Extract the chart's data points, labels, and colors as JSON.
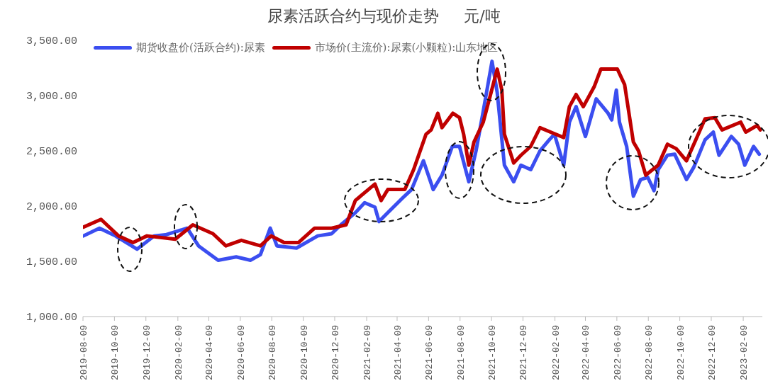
{
  "chart_data": {
    "type": "line",
    "title": "尿素活跃合约与现价走势     元/吨",
    "legend": "top",
    "grid": false,
    "marker": "none",
    "line_style": "solid",
    "xlim": [
      "2019-08-09",
      "2023-03-18"
    ],
    "xticks": [
      "2019-08-09",
      "2019-10-09",
      "2019-12-09",
      "2020-02-09",
      "2020-04-09",
      "2020-06-09",
      "2020-08-09",
      "2020-10-09",
      "2020-12-09",
      "2021-02-09",
      "2021-04-09",
      "2021-06-09",
      "2021-08-09",
      "2021-10-09",
      "2021-12-09",
      "2022-02-09",
      "2022-04-09",
      "2022-06-09",
      "2022-08-09",
      "2022-10-09",
      "2022-12-09",
      "2023-02-09"
    ],
    "ylim": [
      1000,
      3500
    ],
    "yticks": [
      {
        "value": 1000,
        "label": "1,000.00"
      },
      {
        "value": 1500,
        "label": "1,500.00"
      },
      {
        "value": 2000,
        "label": "2,000.00"
      },
      {
        "value": 2500,
        "label": "2,500.00"
      },
      {
        "value": 3000,
        "label": "3,000.00"
      },
      {
        "value": 3500,
        "label": "3,500.00"
      }
    ],
    "series": [
      {
        "name": "期货收盘价(活跃合约):尿素",
        "color": "#3b4ef0",
        "x": [
          "2019-08-10",
          "2019-09-10",
          "2019-10-11",
          "2019-11-22",
          "2019-12-25",
          "2020-01-16",
          "2020-02-27",
          "2020-03-20",
          "2020-04-27",
          "2020-06-01",
          "2020-06-29",
          "2020-07-18",
          "2020-08-06",
          "2020-08-19",
          "2020-09-26",
          "2020-11-06",
          "2020-12-03",
          "2020-12-21",
          "2021-01-18",
          "2021-02-05",
          "2021-02-25",
          "2021-03-05",
          "2021-03-22",
          "2021-04-19",
          "2021-05-07",
          "2021-05-30",
          "2021-06-18",
          "2021-07-05",
          "2021-07-25",
          "2021-08-08",
          "2021-08-26",
          "2021-09-09",
          "2021-09-23",
          "2021-10-10",
          "2021-10-20",
          "2021-11-03",
          "2021-11-21",
          "2021-12-05",
          "2021-12-24",
          "2022-01-11",
          "2022-01-29",
          "2022-02-08",
          "2022-02-26",
          "2022-03-09",
          "2022-03-22",
          "2022-04-09",
          "2022-04-30",
          "2022-05-23",
          "2022-05-30",
          "2022-06-08",
          "2022-06-14",
          "2022-06-28",
          "2022-07-11",
          "2022-07-25",
          "2022-08-08",
          "2022-08-20",
          "2022-08-28",
          "2022-09-15",
          "2022-09-29",
          "2022-10-22",
          "2022-11-05",
          "2022-11-27",
          "2022-12-13",
          "2022-12-24",
          "2023-01-17",
          "2023-01-31",
          "2023-02-12",
          "2023-03-01",
          "2023-03-12"
        ],
        "values": [
          1730,
          1800,
          1730,
          1610,
          1730,
          1740,
          1800,
          1640,
          1510,
          1540,
          1510,
          1560,
          1800,
          1640,
          1620,
          1730,
          1750,
          1830,
          1940,
          2030,
          1990,
          1860,
          1940,
          2070,
          2150,
          2410,
          2150,
          2280,
          2540,
          2540,
          2220,
          2500,
          2860,
          3310,
          3030,
          2370,
          2220,
          2370,
          2330,
          2500,
          2600,
          2650,
          2370,
          2760,
          2900,
          2630,
          2970,
          2840,
          2780,
          3050,
          2760,
          2540,
          2090,
          2240,
          2260,
          2140,
          2330,
          2460,
          2470,
          2240,
          2350,
          2600,
          2670,
          2460,
          2630,
          2560,
          2370,
          2540,
          2470
        ]
      },
      {
        "name": "市场价(主流价):尿素(小颗粒):山东地区",
        "color": "#c00000",
        "x": [
          "2019-08-10",
          "2019-09-13",
          "2019-10-17",
          "2019-11-14",
          "2019-12-11",
          "2020-02-04",
          "2020-03-09",
          "2020-04-17",
          "2020-05-12",
          "2020-06-11",
          "2020-07-18",
          "2020-08-08",
          "2020-09-02",
          "2020-09-30",
          "2020-10-31",
          "2020-12-03",
          "2020-12-31",
          "2021-01-18",
          "2021-02-25",
          "2021-03-09",
          "2021-03-22",
          "2021-04-24",
          "2021-05-11",
          "2021-06-04",
          "2021-06-14",
          "2021-06-27",
          "2021-07-05",
          "2021-07-26",
          "2021-08-08",
          "2021-08-16",
          "2021-08-26",
          "2021-09-05",
          "2021-09-23",
          "2021-10-06",
          "2021-10-20",
          "2021-10-29",
          "2021-11-03",
          "2021-11-21",
          "2021-12-05",
          "2021-12-24",
          "2022-01-11",
          "2022-02-26",
          "2022-03-09",
          "2022-03-22",
          "2022-04-05",
          "2022-04-26",
          "2022-05-09",
          "2022-06-10",
          "2022-06-24",
          "2022-07-11",
          "2022-07-21",
          "2022-08-04",
          "2022-08-28",
          "2022-09-15",
          "2022-10-02",
          "2022-10-22",
          "2022-11-09",
          "2022-11-27",
          "2022-12-16",
          "2022-12-30",
          "2023-02-04",
          "2023-02-14",
          "2023-03-08",
          "2023-03-14"
        ],
        "values": [
          1810,
          1880,
          1730,
          1670,
          1730,
          1700,
          1830,
          1750,
          1640,
          1690,
          1640,
          1730,
          1670,
          1670,
          1800,
          1800,
          1830,
          2050,
          2200,
          2050,
          2150,
          2150,
          2330,
          2650,
          2690,
          2840,
          2710,
          2840,
          2800,
          2650,
          2370,
          2580,
          2760,
          2990,
          3240,
          3050,
          2650,
          2390,
          2460,
          2540,
          2710,
          2620,
          2900,
          3010,
          2900,
          3080,
          3240,
          3240,
          3100,
          2580,
          2500,
          2280,
          2370,
          2560,
          2520,
          2410,
          2600,
          2790,
          2800,
          2690,
          2760,
          2670,
          2730,
          2690
        ]
      }
    ]
  }
}
